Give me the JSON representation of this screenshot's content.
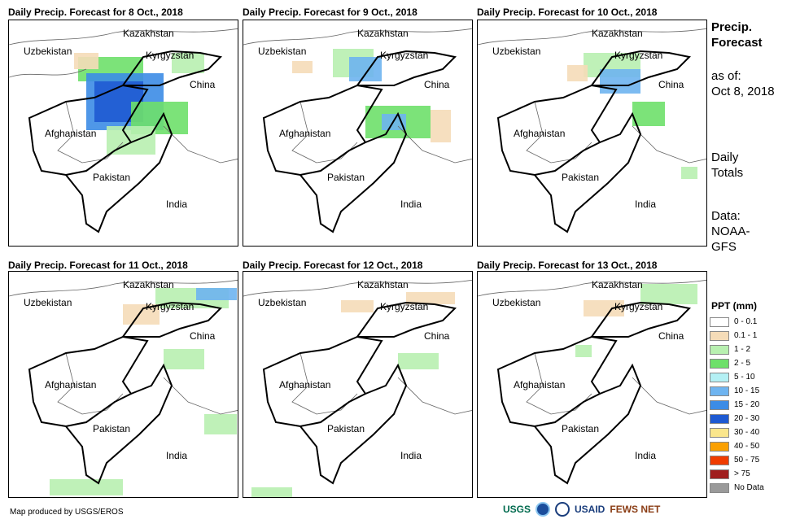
{
  "panels": [
    {
      "title": "Daily Precip. Forecast for 8 Oct., 2018"
    },
    {
      "title": "Daily Precip. Forecast for 9 Oct., 2018"
    },
    {
      "title": "Daily Precip. Forecast for 10 Oct., 2018"
    },
    {
      "title": "Daily Precip. Forecast for 11 Oct., 2018"
    },
    {
      "title": "Daily Precip. Forecast for 12 Oct., 2018"
    },
    {
      "title": "Daily Precip. Forecast for 13 Oct., 2018"
    }
  ],
  "countries": {
    "kazakhstan": "Kazakhstan",
    "uzbekistan": "Uzbekistan",
    "kyrgyzstan": "Kyrgyzstan",
    "china": "China",
    "afghanistan": "Afghanistan",
    "pakistan": "Pakistan",
    "india": "India"
  },
  "sidebar": {
    "title": "Precip. Forecast",
    "as_of_label": "as of:",
    "as_of_date": "Oct 8, 2018",
    "daily": "Daily",
    "totals": "Totals",
    "data_label": "Data:",
    "data_source_1": "NOAA-",
    "data_source_2": "GFS"
  },
  "legend": {
    "title": "PPT (mm)",
    "items": [
      {
        "label": "0 - 0.1",
        "color": "#ffffff"
      },
      {
        "label": "0.1 - 1",
        "color": "#f5dcb8"
      },
      {
        "label": "1 - 2",
        "color": "#b8f0b0"
      },
      {
        "label": "2 - 5",
        "color": "#6ee06a"
      },
      {
        "label": "5 - 10",
        "color": "#b4f0f4"
      },
      {
        "label": "10 - 15",
        "color": "#6eb4f0"
      },
      {
        "label": "15 - 20",
        "color": "#3c8ce6"
      },
      {
        "label": "20 - 30",
        "color": "#1e5ad2"
      },
      {
        "label": "30 - 40",
        "color": "#fae68c"
      },
      {
        "label": "40 - 50",
        "color": "#faa000"
      },
      {
        "label": "50 - 75",
        "color": "#f03c00"
      },
      {
        "label": "> 75",
        "color": "#a01e1e"
      },
      {
        "label": "No Data",
        "color": "#9a9a9a"
      }
    ]
  },
  "footer": {
    "credit": "Map produced by USGS/EROS",
    "logo_usgs": "USGS",
    "logo_usaid": "USAID",
    "logo_fews": "FEWS NET"
  }
}
